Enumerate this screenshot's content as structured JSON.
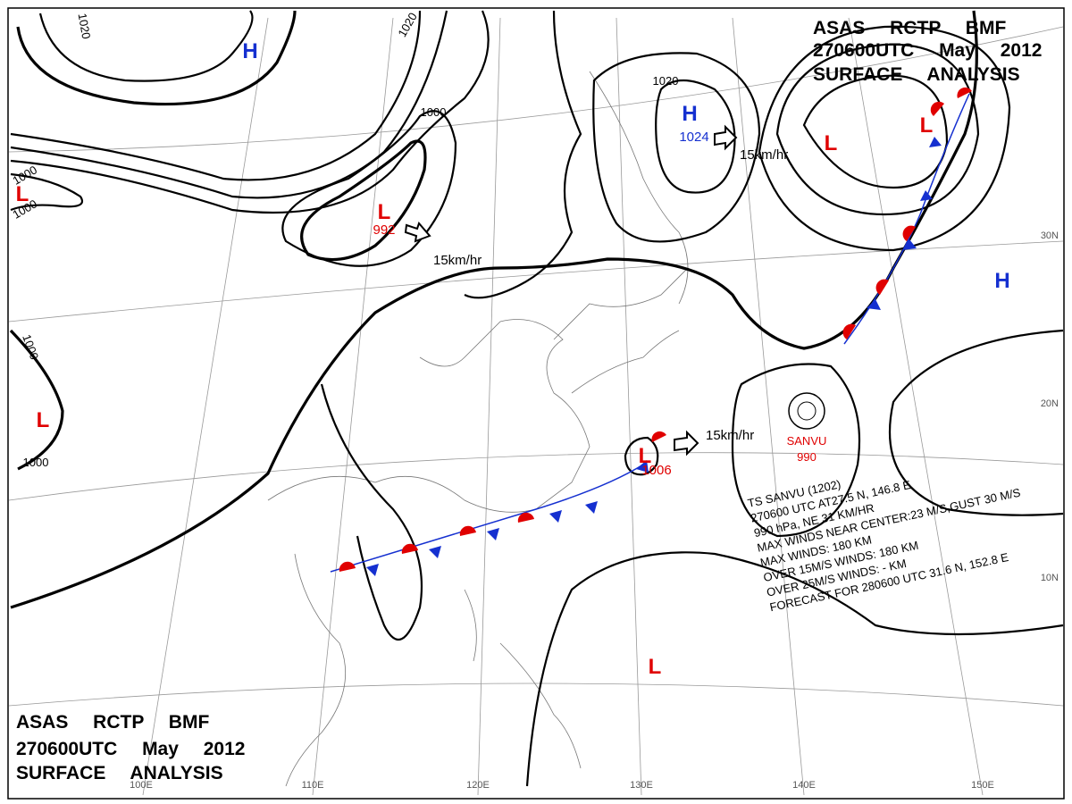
{
  "header_top": {
    "lines": [
      "ASAS RCTP BMF",
      "270600UTC May 2012",
      "SURFACE ANALYSIS"
    ]
  },
  "header_bottom": {
    "lines": [
      "ASAS RCTP BMF",
      "270600UTC May 2012",
      "SURFACE ANALYSIS"
    ]
  },
  "pressure_centers": [
    {
      "label": "H",
      "color": "#1530d0"
    },
    {
      "label": "L",
      "color": "#e00000"
    },
    {
      "label": "L",
      "color": "#e00000",
      "pressure": "992"
    },
    {
      "label": "H",
      "color": "#1530d0",
      "pressure": "1024"
    },
    {
      "label": "L",
      "color": "#e00000"
    },
    {
      "label": "L",
      "color": "#e00000"
    },
    {
      "label": "H",
      "color": "#1530d0"
    },
    {
      "label": "L",
      "color": "#e00000"
    },
    {
      "label": "L",
      "color": "#e00000",
      "pressure": "1006"
    },
    {
      "label": "L",
      "color": "#e00000"
    }
  ],
  "isobar_labels": [
    "1020",
    "1020",
    "1000",
    "1020",
    "1000",
    "1000",
    "1000",
    "1000"
  ],
  "motion_labels": [
    "15km/hr",
    "15km/hr",
    "15km/hr"
  ],
  "storm": {
    "name": "SANVU",
    "pressure": "990",
    "bulletin": [
      "TS SANVU (1202)",
      "270600 UTC AT27.5 N, 146.8 E",
      "990 hPa, NE 31 KM/HR",
      "MAX WINDS NEAR CENTER:23 M/S,GUST 30 M/S",
      "MAX WINDS: 180 KM",
      "OVER 15M/S WINDS: 180 KM",
      "OVER 25M/S WINDS: - KM",
      "FORECAST FOR 280600 UTC 31.6 N, 152.8 E"
    ]
  },
  "longitude_labels": [
    "100E",
    "110E",
    "120E",
    "130E",
    "140E",
    "150E"
  ],
  "latitude_labels": [
    "30N",
    "20N",
    "10N"
  ]
}
